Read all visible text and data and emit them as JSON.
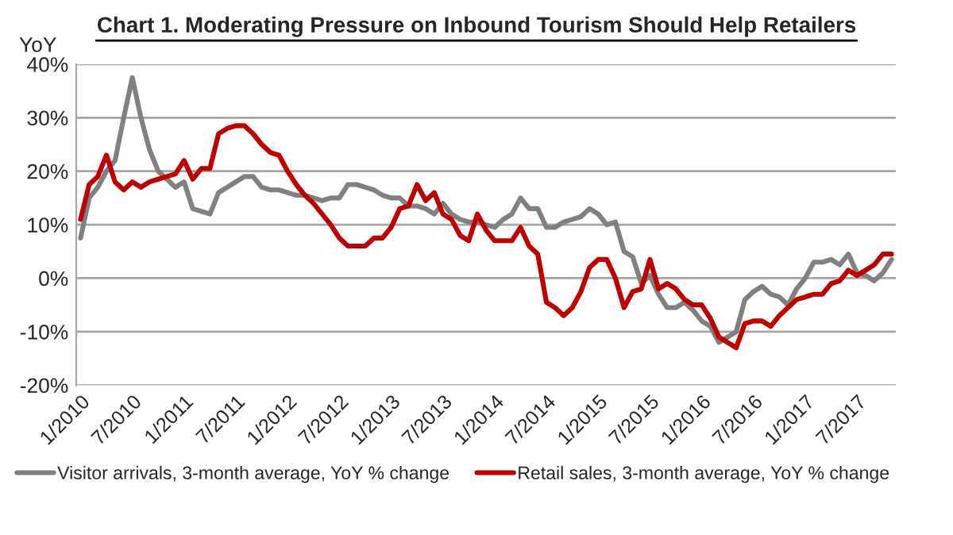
{
  "chart_data": {
    "type": "line",
    "title": "Chart 1. Moderating Pressure on Inbound Tourism Should Help Retailers",
    "ylabel": "YoY",
    "categories": [
      "1/2010",
      null,
      null,
      null,
      null,
      null,
      "7/2010",
      null,
      null,
      null,
      null,
      null,
      "1/2011",
      null,
      null,
      null,
      null,
      null,
      "7/2011",
      null,
      null,
      null,
      null,
      null,
      "1/2012",
      null,
      null,
      null,
      null,
      null,
      "7/2012",
      null,
      null,
      null,
      null,
      null,
      "1/2013",
      null,
      null,
      null,
      null,
      null,
      "7/2013",
      null,
      null,
      null,
      null,
      null,
      "1/2014",
      null,
      null,
      null,
      null,
      null,
      "7/2014",
      null,
      null,
      null,
      null,
      null,
      "1/2015",
      null,
      null,
      null,
      null,
      null,
      "7/2015",
      null,
      null,
      null,
      null,
      null,
      "1/2016",
      null,
      null,
      null,
      null,
      null,
      "7/2016",
      null,
      null,
      null,
      null,
      null,
      "1/2017",
      null,
      null,
      null,
      null,
      null,
      "7/2017",
      null,
      null,
      null,
      null
    ],
    "series": [
      {
        "name": "Visitor arrivals, 3-month average, YoY % change",
        "color": "#808080",
        "values": [
          7.5,
          15,
          17,
          20,
          22,
          30,
          37.5,
          30,
          24,
          20,
          18.5,
          17,
          18,
          13,
          12.5,
          12,
          16,
          17,
          18,
          19,
          19,
          17,
          16.5,
          16.5,
          16,
          15.5,
          15.5,
          15,
          14.5,
          15,
          15,
          17.5,
          17.5,
          17,
          16.5,
          15.5,
          15,
          15,
          13.5,
          13.5,
          13,
          12,
          14,
          12,
          11,
          10.5,
          10.5,
          10,
          9.5,
          11,
          12,
          15,
          13,
          13,
          9.5,
          9.5,
          10.5,
          11,
          11.5,
          13,
          12,
          10,
          10.5,
          5,
          4,
          -1,
          0.5,
          -3,
          -5.5,
          -5.5,
          -4.5,
          -6,
          -8,
          -9,
          -12,
          -11,
          -10,
          -4,
          -2.5,
          -1.5,
          -3,
          -3.5,
          -5,
          -2,
          0,
          3,
          3,
          3.5,
          2.5,
          4.5,
          1,
          0.5,
          -0.5,
          1,
          3.5
        ]
      },
      {
        "name": "Retail sales, 3-month average, YoY % change",
        "color": "#c00000",
        "values": [
          11,
          17.5,
          19,
          23,
          18,
          16.5,
          18,
          17,
          18,
          18.5,
          19,
          19.5,
          22,
          18.5,
          20.5,
          20.5,
          27,
          28,
          28.5,
          28.5,
          27,
          25,
          23.5,
          23,
          20,
          17.5,
          15.5,
          14,
          12,
          10,
          7.5,
          6,
          6,
          6,
          7.5,
          7.5,
          9.5,
          13,
          13.5,
          17.5,
          14.5,
          16,
          12,
          11,
          8,
          7,
          12,
          9,
          7,
          7,
          7,
          9.5,
          6,
          4.5,
          -4.5,
          -5.5,
          -7,
          -5.5,
          -2.5,
          2,
          3.5,
          3.5,
          0,
          -5.5,
          -2.5,
          -2,
          3.5,
          -2,
          -1,
          -2,
          -4,
          -5,
          -5,
          -7.5,
          -11,
          -12,
          -13,
          -8.5,
          -8,
          -8,
          -9,
          -7,
          -5.5,
          -4,
          -3.5,
          -3,
          -3,
          -1,
          -0.5,
          1.5,
          0.5,
          1.5,
          2.5,
          4.5,
          4.5
        ]
      }
    ],
    "ylim": [
      -20,
      40
    ],
    "yticks": [
      {
        "value": -20,
        "label": "-20%"
      },
      {
        "value": -10,
        "label": "-10%"
      },
      {
        "value": 0,
        "label": "0%"
      },
      {
        "value": 10,
        "label": "10%"
      },
      {
        "value": 20,
        "label": "20%"
      },
      {
        "value": 30,
        "label": "30%"
      },
      {
        "value": 40,
        "label": "40%"
      }
    ],
    "grid": "y",
    "legend": "bottom",
    "line_style": "solid"
  }
}
